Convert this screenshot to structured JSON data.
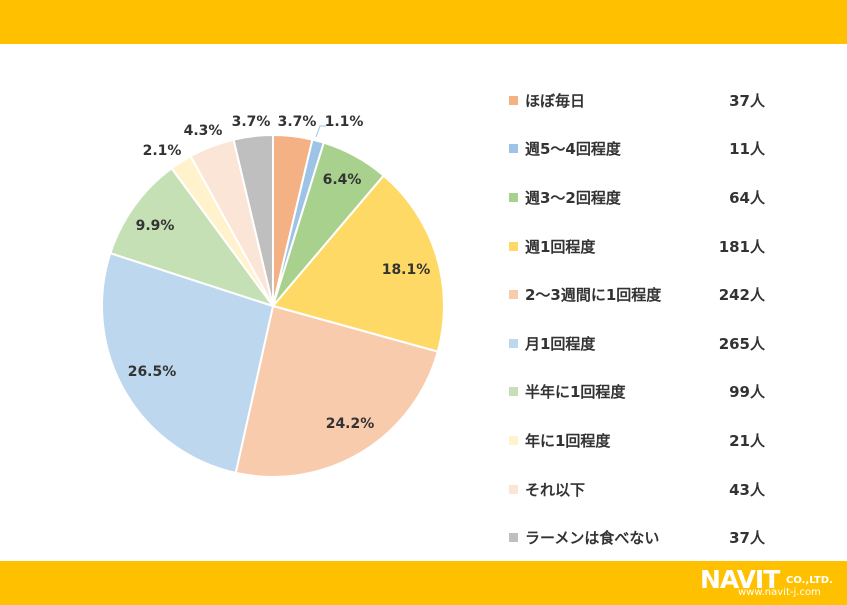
{
  "colors": {
    "band": "#FFC000",
    "text": "#333333"
  },
  "chart_data": {
    "type": "pie",
    "categories": [
      "ほぼ毎日",
      "週5～4回程度",
      "週3～2回程度",
      "週1回程度",
      "2～3週間に1回程度",
      "月1回程度",
      "半年に1回程度",
      "年に1回程度",
      "それ以下",
      "ラーメンは食べない"
    ],
    "counts": [
      "37人",
      "11人",
      "64人",
      "181人",
      "242人",
      "265人",
      "99人",
      "21人",
      "43人",
      "37人"
    ],
    "values": [
      3.7,
      1.1,
      6.4,
      18.1,
      24.2,
      26.5,
      9.9,
      2.1,
      4.3,
      3.7
    ],
    "data_labels": [
      "3.7%",
      "1.1%",
      "6.4%",
      "18.1%",
      "24.2%",
      "26.5%",
      "9.9%",
      "2.1%",
      "4.3%",
      "3.7%"
    ],
    "colors": [
      "#F4B183",
      "#9DC3E6",
      "#A9D18E",
      "#FFD966",
      "#F8CBAD",
      "#BDD7EE",
      "#C5E0B4",
      "#FFF2CC",
      "#FBE5D6",
      "#BFBFBF"
    ],
    "legend_position": "right",
    "start": "top",
    "direction": "clockwise"
  },
  "logo": {
    "main": "NAVIT",
    "suffix": "CO.,LTD.",
    "url": "www.navit-j.com"
  }
}
